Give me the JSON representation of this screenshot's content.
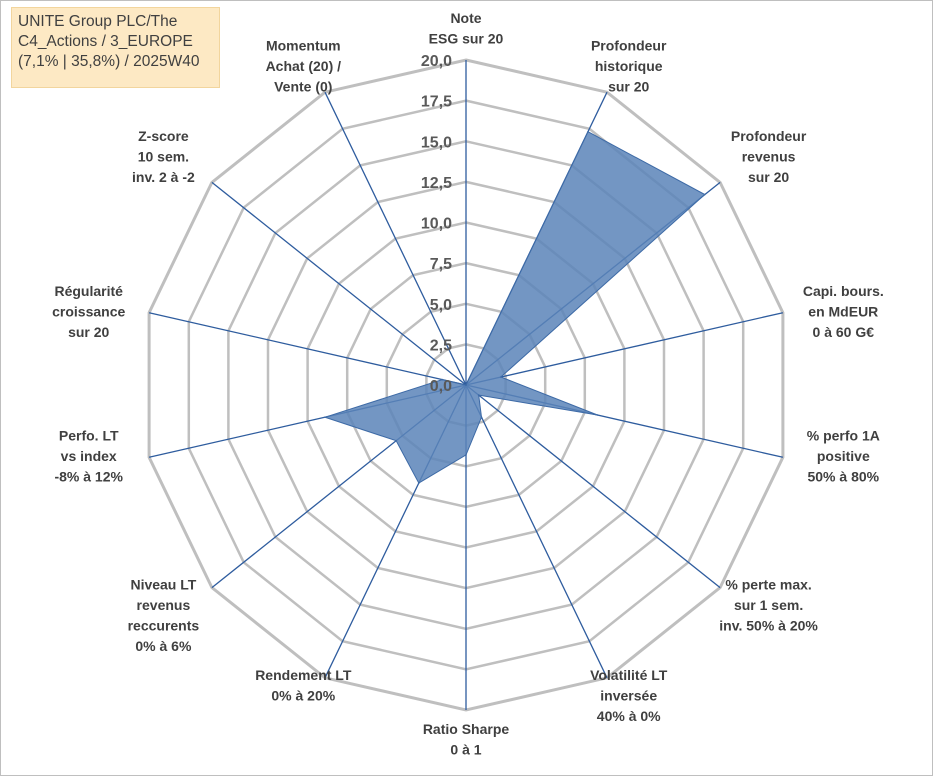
{
  "title_box": {
    "line1": "UNITE Group PLC/The",
    "line2": "C4_Actions / 3_EUROPE",
    "line3": "(7,1% | 35,8%) / 2025W40"
  },
  "colors": {
    "grid": "#bfbfbf",
    "spoke": "#2e5c9e",
    "fill": "#5b84b8",
    "fill_stroke": "#3d6aa6"
  },
  "chart_data": {
    "type": "radar",
    "title": "",
    "range": [
      0,
      20
    ],
    "grid": true,
    "ticks": [
      "0,0",
      "2,5",
      "5,0",
      "7,5",
      "10,0",
      "12,5",
      "15,0",
      "17,5",
      "20,0"
    ],
    "tick_values": [
      0,
      2.5,
      5,
      7.5,
      10,
      12.5,
      15,
      17.5,
      20
    ],
    "axes": [
      {
        "label": [
          "Note",
          "ESG sur 20"
        ],
        "value": 0
      },
      {
        "label": [
          "Profondeur",
          "historique",
          "sur 20"
        ],
        "value": 17.3
      },
      {
        "label": [
          "Profondeur",
          "revenus",
          "sur 20"
        ],
        "value": 18.8
      },
      {
        "label": [
          "Capi. bours.",
          "en MdEUR",
          "0 à 60 G€"
        ],
        "value": 2.2
      },
      {
        "label": [
          "% perfo 1A",
          "positive",
          "50% à 80%"
        ],
        "value": 8.3
      },
      {
        "label": [
          "% perte max.",
          "sur 1 sem.",
          "inv. 50% à 20%"
        ],
        "value": 1.0
      },
      {
        "label": [
          "Volatilité LT",
          "inversée",
          "40% à 0%"
        ],
        "value": 2.2
      },
      {
        "label": [
          "Ratio Sharpe",
          "0 à 1"
        ],
        "value": 4.3
      },
      {
        "label": [
          "Rendement LT",
          "0% à 20%"
        ],
        "value": 6.7
      },
      {
        "label": [
          "Niveau LT",
          "revenus",
          "reccurents",
          "0% à 6%"
        ],
        "value": 5.5
      },
      {
        "label": [
          "Perfo. LT",
          "vs index",
          "-8% à 12%"
        ],
        "value": 8.9
      },
      {
        "label": [
          "Régularité",
          "croissance",
          "sur 20"
        ],
        "value": 1.5
      },
      {
        "label": [
          "Z-score",
          "10 sem.",
          "inv. 2 à -2"
        ],
        "value": 0
      },
      {
        "label": [
          "Momentum",
          "Achat (20) /",
          "Vente (0)"
        ],
        "value": 0
      }
    ]
  }
}
